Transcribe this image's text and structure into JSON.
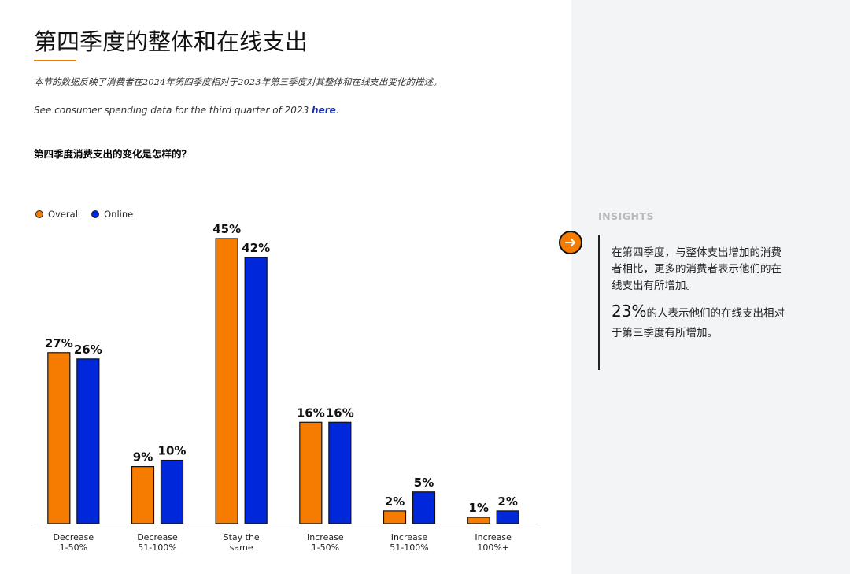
{
  "header": {
    "title": "第四季度的整体和在线支出",
    "intro": "本节的数据反映了消费者在2024年第四季度相对于2023年第三季度对其整体和在线支出变化的描述。",
    "see_prefix": "See consumer spending data for the third quarter of 2023 ",
    "see_link": "here",
    "see_suffix": "."
  },
  "chart_question": "第四季度消费支出的变化是怎样的？",
  "colors": {
    "overall": "#f57c00",
    "online": "#0027d9",
    "accent": "#f57c00"
  },
  "chart_data": {
    "type": "bar",
    "title": "第四季度消费支出的变化是怎样的？",
    "categories": [
      [
        "Decrease",
        "1-50%"
      ],
      [
        "Decrease",
        "51-100%"
      ],
      [
        "Stay the",
        "same"
      ],
      [
        "Increase",
        "1-50%"
      ],
      [
        "Increase",
        "51-100%"
      ],
      [
        "Increase",
        "100%+"
      ]
    ],
    "series": [
      {
        "name": "Overall",
        "values": [
          27,
          9,
          45,
          16,
          2,
          1
        ],
        "labels": [
          "27%",
          "9%",
          "45%",
          "16%",
          "2%",
          "1%"
        ]
      },
      {
        "name": "Online",
        "values": [
          26,
          10,
          42,
          16,
          5,
          2
        ],
        "labels": [
          "26%",
          "10%",
          "42%",
          "16%",
          "5%",
          "2%"
        ]
      }
    ],
    "ylim": [
      0,
      45
    ],
    "legend": "top-left",
    "grid": false
  },
  "insights": {
    "heading": "INSIGHTS",
    "paragraph": "在第四季度，与整体支出增加的消费者相比，更多的消费者表示他们的在线支出有所增加。",
    "stat": "23%",
    "stat_text": "的人表示他们的在线支出相对于第三季度有所增加。",
    "arrow_icon": "arrow-right-icon"
  }
}
